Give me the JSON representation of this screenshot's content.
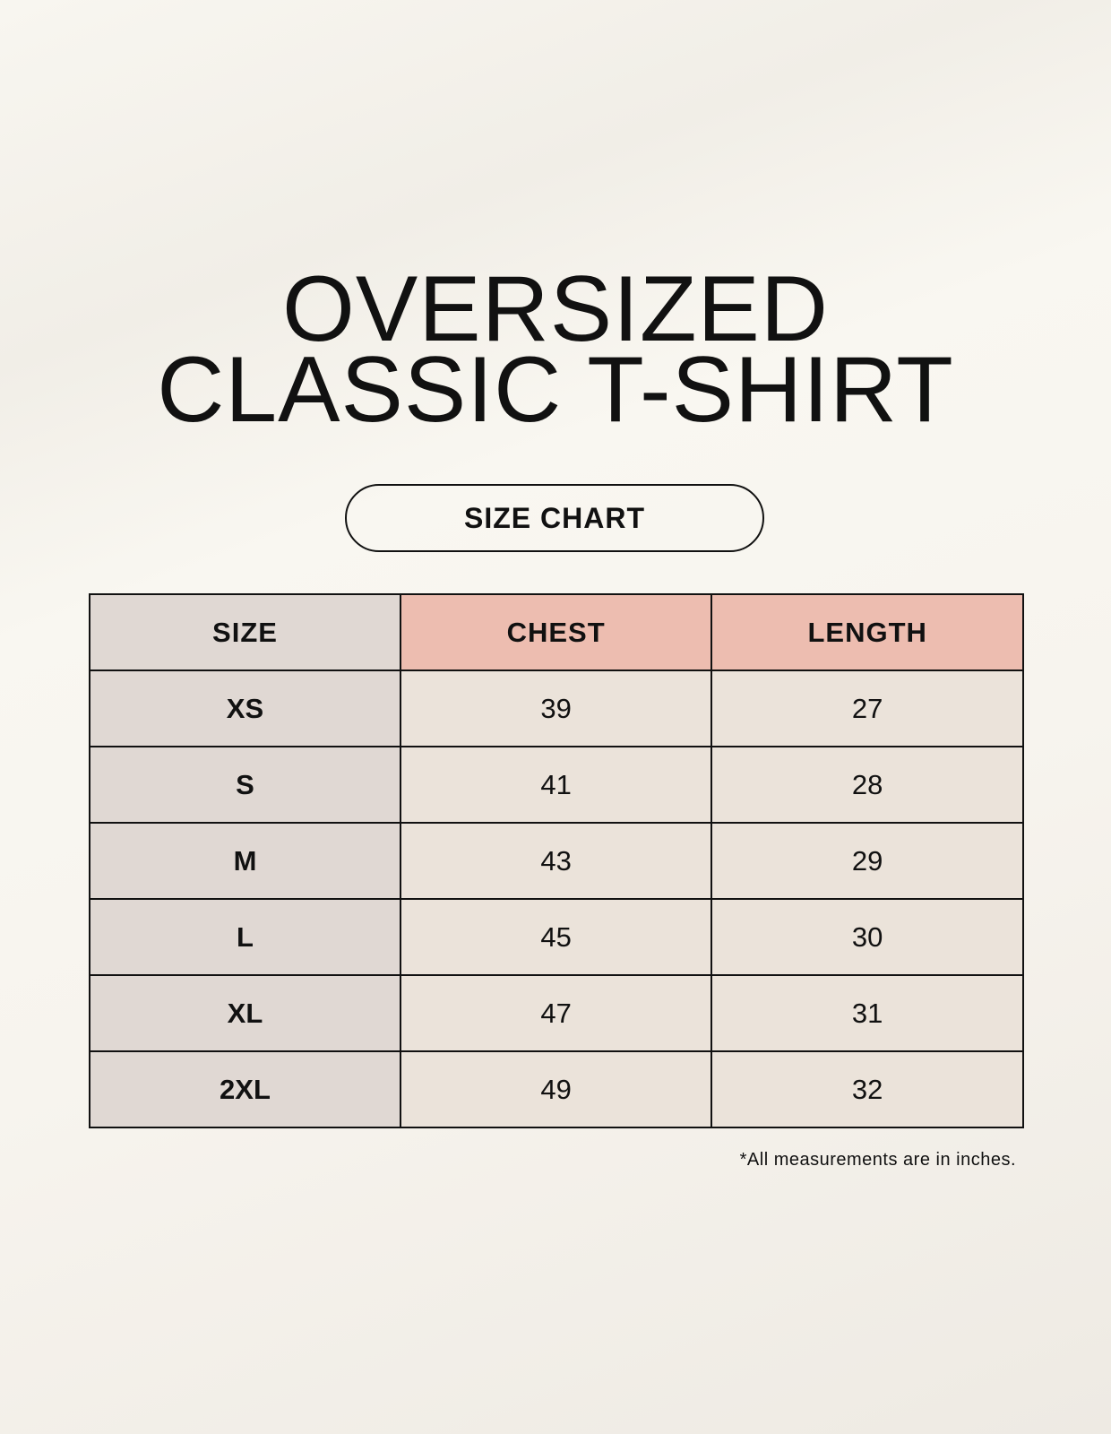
{
  "title_line1": "OVERSIZED",
  "title_line2": "CLASSIC T-SHIRT",
  "badge": "SIZE CHART",
  "colors": {
    "header_size": "#e0d8d3",
    "header_measure": "#edbdb0",
    "cell": "#ebe3da"
  },
  "table": {
    "headers": [
      "SIZE",
      "CHEST",
      "LENGTH"
    ],
    "rows": [
      [
        "XS",
        "39",
        "27"
      ],
      [
        "S",
        "41",
        "28"
      ],
      [
        "M",
        "43",
        "29"
      ],
      [
        "L",
        "45",
        "30"
      ],
      [
        "XL",
        "47",
        "31"
      ],
      [
        "2XL",
        "49",
        "32"
      ]
    ]
  },
  "footnote": "*All measurements are in inches."
}
